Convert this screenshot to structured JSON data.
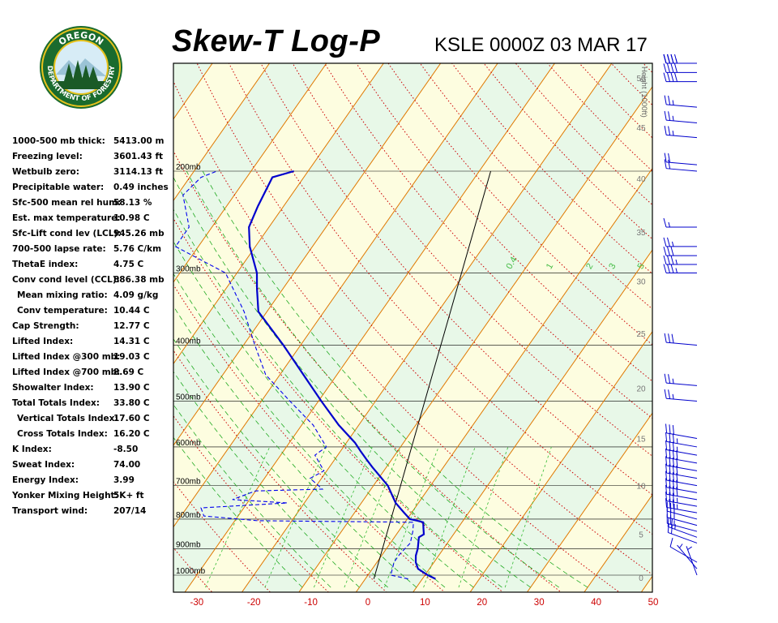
{
  "header": {
    "title": "Skew-T Log-P",
    "station": "KSLE 0000Z 03 MAR 17"
  },
  "logo": {
    "top_text": "OREGON",
    "bottom_text": "DEPARTMENT OF FORESTRY",
    "colors": {
      "ring": "#1a6b2e",
      "accent": "#e8c21c",
      "sky": "#d7ecf6"
    }
  },
  "indices": [
    {
      "label": "1000-500 mb thick:",
      "value": "5413.00 m",
      "indent": false
    },
    {
      "label": "Freezing level:",
      "value": "3601.43 ft",
      "indent": false
    },
    {
      "label": "Wetbulb zero:",
      "value": "3114.13 ft",
      "indent": false
    },
    {
      "label": "Precipitable water:",
      "value": "0.49 inches",
      "indent": false
    },
    {
      "label": "Sfc-500 mean rel hum:",
      "value": "58.13 %",
      "indent": false
    },
    {
      "label": "Est. max temperature:",
      "value": "10.98 C",
      "indent": false
    },
    {
      "label": "Sfc-Lift cond lev (LCL):",
      "value": "945.26 mb",
      "indent": false
    },
    {
      "label": "700-500 lapse rate:",
      "value": "5.76 C/km",
      "indent": false
    },
    {
      "label": "ThetaE index:",
      "value": "4.75 C",
      "indent": false
    },
    {
      "label": "Conv cond level (CCL):",
      "value": "886.38 mb",
      "indent": false
    },
    {
      "label": "Mean mixing ratio:",
      "value": "4.09 g/kg",
      "indent": true
    },
    {
      "label": "Conv temperature:",
      "value": "10.44 C",
      "indent": true
    },
    {
      "label": "Cap Strength:",
      "value": "12.77 C",
      "indent": false
    },
    {
      "label": "Lifted Index:",
      "value": "14.31 C",
      "indent": false
    },
    {
      "label": "Lifted Index @300 mb:",
      "value": "19.03 C",
      "indent": false
    },
    {
      "label": "Lifted Index @700 mb:",
      "value": "8.69 C",
      "indent": false
    },
    {
      "label": "Showalter Index:",
      "value": "13.90 C",
      "indent": false
    },
    {
      "label": "Total Totals Index:",
      "value": "33.80 C",
      "indent": false
    },
    {
      "label": "Vertical Totals Index:",
      "value": "17.60 C",
      "indent": true
    },
    {
      "label": "Cross Totals Index:",
      "value": "16.20 C",
      "indent": true
    },
    {
      "label": "K Index:",
      "value": "-8.50",
      "indent": false
    },
    {
      "label": "Sweat Index:",
      "value": "74.00",
      "indent": false
    },
    {
      "label": "Energy Index:",
      "value": "3.99",
      "indent": false
    },
    {
      "label": "Yonker Mixing Height:",
      "value": "5K+ ft",
      "indent": false
    },
    {
      "label": "Transport wind:",
      "value": "207/14",
      "indent": false
    }
  ],
  "chart_data": {
    "type": "line",
    "colors": {
      "temperature": "#0000cc",
      "dewpoint": "#0000ee",
      "isotherm": "#e07800",
      "dry_adiabat": "#cc0000",
      "moist_adiabat": "#22aa22",
      "mixing_ratio": "#33bb33",
      "band_green": "#e8f8e8",
      "band_yellow": "#fdfde0",
      "parcel": "#000000",
      "axis_ticks": "#cc0000",
      "wind_barbs": "#0000cc"
    },
    "x_ticks": [
      -30,
      -20,
      -10,
      0,
      10,
      20,
      30,
      40,
      50
    ],
    "xlim": [
      -33.5,
      50
    ],
    "pressure_levels": [
      {
        "p": 1000,
        "label": "1000mb"
      },
      {
        "p": 900,
        "label": "900mb"
      },
      {
        "p": 800,
        "label": "800mb"
      },
      {
        "p": 700,
        "label": "700mb"
      },
      {
        "p": 600,
        "label": "600mb"
      },
      {
        "p": 500,
        "label": "500mb"
      },
      {
        "p": 400,
        "label": "400mb"
      },
      {
        "p": 300,
        "label": "300mb"
      },
      {
        "p": 200,
        "label": "200mb"
      }
    ],
    "height_axis": {
      "label": "Height (1000ft)",
      "ticks": [
        {
          "p": 1010,
          "label": "0"
        },
        {
          "p": 850,
          "label": "5"
        },
        {
          "p": 700,
          "label": "10"
        },
        {
          "p": 580,
          "label": "15"
        },
        {
          "p": 475,
          "label": "20"
        },
        {
          "p": 382,
          "label": "25"
        },
        {
          "p": 310,
          "label": "30"
        },
        {
          "p": 255,
          "label": "35"
        },
        {
          "p": 206,
          "label": "40"
        },
        {
          "p": 168,
          "label": "45"
        },
        {
          "p": 138,
          "label": "50"
        }
      ]
    },
    "mixing_ratio_labels": [
      {
        "value": "0.4",
        "t": -12
      },
      {
        "value": "1",
        "t": -5
      },
      {
        "value": "2",
        "t": 2
      },
      {
        "value": "3",
        "t": 6
      },
      {
        "value": "5",
        "t": 11
      }
    ],
    "temperature": [
      {
        "p": 1015,
        "t": 12.3
      },
      {
        "p": 1000,
        "t": 10.5
      },
      {
        "p": 975,
        "t": 8.0
      },
      {
        "p": 950,
        "t": 6.8
      },
      {
        "p": 925,
        "t": 6.0
      },
      {
        "p": 900,
        "t": 5.5
      },
      {
        "p": 860,
        "t": 4.3
      },
      {
        "p": 850,
        "t": 4.8
      },
      {
        "p": 830,
        "t": 4.0
      },
      {
        "p": 810,
        "t": 3.2
      },
      {
        "p": 805,
        "t": 2.0
      },
      {
        "p": 800,
        "t": 0.5
      },
      {
        "p": 780,
        "t": -1.3
      },
      {
        "p": 750,
        "t": -4.0
      },
      {
        "p": 700,
        "t": -7.5
      },
      {
        "p": 650,
        "t": -12.5
      },
      {
        "p": 630,
        "t": -14.5
      },
      {
        "p": 610,
        "t": -16.5
      },
      {
        "p": 590,
        "t": -18.5
      },
      {
        "p": 550,
        "t": -23.5
      },
      {
        "p": 500,
        "t": -29.5
      },
      {
        "p": 400,
        "t": -43.0
      },
      {
        "p": 350,
        "t": -51.5
      },
      {
        "p": 320,
        "t": -54.5
      },
      {
        "p": 300,
        "t": -56.5
      },
      {
        "p": 270,
        "t": -61.0
      },
      {
        "p": 250,
        "t": -63.5
      },
      {
        "p": 230,
        "t": -64.5
      },
      {
        "p": 205,
        "t": -65.5
      },
      {
        "p": 200,
        "t": -62.5
      }
    ],
    "dewpoint": [
      {
        "p": 1015,
        "t": 7.5
      },
      {
        "p": 1000,
        "t": 4.0
      },
      {
        "p": 950,
        "t": 3.0
      },
      {
        "p": 920,
        "t": 3.0
      },
      {
        "p": 880,
        "t": 3.5
      },
      {
        "p": 840,
        "t": 2.5
      },
      {
        "p": 810,
        "t": 1.5
      },
      {
        "p": 805,
        "t": -26.0
      },
      {
        "p": 790,
        "t": -36.0
      },
      {
        "p": 765,
        "t": -37.5
      },
      {
        "p": 750,
        "t": -23.0
      },
      {
        "p": 740,
        "t": -33.0
      },
      {
        "p": 715,
        "t": -30.0
      },
      {
        "p": 710,
        "t": -18.5
      },
      {
        "p": 680,
        "t": -22.0
      },
      {
        "p": 660,
        "t": -20.5
      },
      {
        "p": 620,
        "t": -24.0
      },
      {
        "p": 600,
        "t": -23.0
      },
      {
        "p": 550,
        "t": -28.0
      },
      {
        "p": 500,
        "t": -35.0
      },
      {
        "p": 450,
        "t": -42.5
      },
      {
        "p": 400,
        "t": -48.0
      },
      {
        "p": 350,
        "t": -54.0
      },
      {
        "p": 300,
        "t": -62.0
      },
      {
        "p": 270,
        "t": -74.0
      },
      {
        "p": 250,
        "t": -74.0
      },
      {
        "p": 220,
        "t": -79.0
      },
      {
        "p": 205,
        "t": -78.0
      },
      {
        "p": 200,
        "t": -76.0
      }
    ],
    "parcel": [
      {
        "p": 1015,
        "t": 1.5
      },
      {
        "p": 200,
        "t": -28.0
      }
    ]
  },
  "wind_barbs": [
    {
      "p": 1000,
      "dir": 340,
      "spd": 5
    },
    {
      "p": 975,
      "dir": 320,
      "spd": 5
    },
    {
      "p": 950,
      "dir": 300,
      "spd": 10
    },
    {
      "p": 880,
      "dir": 290,
      "spd": 20
    },
    {
      "p": 860,
      "dir": 290,
      "spd": 25
    },
    {
      "p": 840,
      "dir": 285,
      "spd": 25
    },
    {
      "p": 820,
      "dir": 285,
      "spd": 30
    },
    {
      "p": 800,
      "dir": 285,
      "spd": 30
    },
    {
      "p": 780,
      "dir": 280,
      "spd": 35
    },
    {
      "p": 760,
      "dir": 280,
      "spd": 35
    },
    {
      "p": 740,
      "dir": 280,
      "spd": 40
    },
    {
      "p": 720,
      "dir": 280,
      "spd": 40
    },
    {
      "p": 700,
      "dir": 280,
      "spd": 40
    },
    {
      "p": 680,
      "dir": 280,
      "spd": 40
    },
    {
      "p": 660,
      "dir": 280,
      "spd": 40
    },
    {
      "p": 640,
      "dir": 280,
      "spd": 40
    },
    {
      "p": 620,
      "dir": 280,
      "spd": 35
    },
    {
      "p": 600,
      "dir": 280,
      "spd": 35
    },
    {
      "p": 580,
      "dir": 280,
      "spd": 30
    },
    {
      "p": 500,
      "dir": 275,
      "spd": 25
    },
    {
      "p": 470,
      "dir": 275,
      "spd": 25
    },
    {
      "p": 400,
      "dir": 275,
      "spd": 30
    },
    {
      "p": 300,
      "dir": 270,
      "spd": 35
    },
    {
      "p": 290,
      "dir": 270,
      "spd": 35
    },
    {
      "p": 280,
      "dir": 270,
      "spd": 30
    },
    {
      "p": 270,
      "dir": 270,
      "spd": 25
    },
    {
      "p": 250,
      "dir": 270,
      "spd": 15
    },
    {
      "p": 200,
      "dir": 275,
      "spd": 20
    },
    {
      "p": 195,
      "dir": 275,
      "spd": 20
    },
    {
      "p": 175,
      "dir": 275,
      "spd": 25
    },
    {
      "p": 165,
      "dir": 275,
      "spd": 25
    },
    {
      "p": 155,
      "dir": 275,
      "spd": 25
    },
    {
      "p": 140,
      "dir": 270,
      "spd": 40
    },
    {
      "p": 135,
      "dir": 270,
      "spd": 40
    },
    {
      "p": 130,
      "dir": 270,
      "spd": 40
    },
    {
      "p": 125,
      "dir": 270,
      "spd": 35
    },
    {
      "p": 120,
      "dir": 270,
      "spd": 30
    },
    {
      "p": 115,
      "dir": 270,
      "spd": 20
    }
  ]
}
